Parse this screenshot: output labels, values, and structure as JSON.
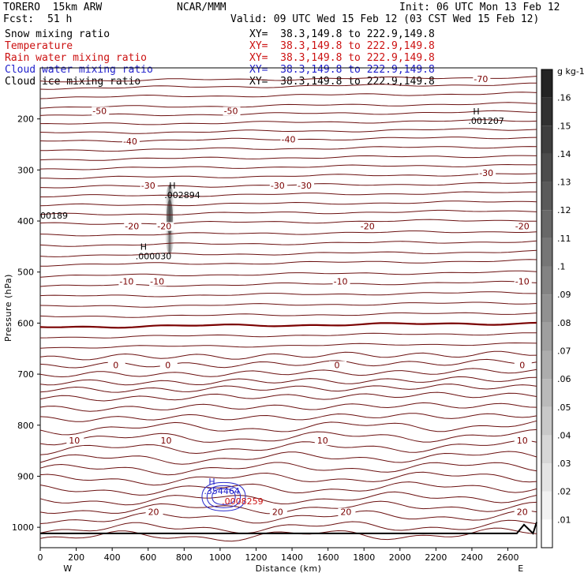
{
  "header": {
    "model": "TORERO  15km ARW",
    "org": "NCAR/MMM",
    "init": "Init: 06 UTC Mon 13 Feb 12",
    "fcst_label": "Fcst:",
    "fcst_value": "51 h",
    "valid": "Valid: 09 UTC Wed 15 Feb 12 (03 CST Wed 15 Feb 12)"
  },
  "legend": [
    {
      "name": "Snow mixing ratio",
      "xy": "XY=  38.3,149.8 to 222.9,149.8",
      "color": "#000000"
    },
    {
      "name": "Temperature",
      "xy": "XY=  38.3,149.8 to 222.9,149.8",
      "color": "#cc1111"
    },
    {
      "name": "Rain water mixing ratio",
      "xy": "XY=  38.3,149.8 to 222.9,149.8",
      "color": "#cc1111"
    },
    {
      "name": "Cloud water mixing ratio",
      "xy": "XY=  38.3,149.8 to 222.9,149.8",
      "color": "#2222cc"
    },
    {
      "name": "Cloud ice mixing ratio",
      "xy": "XY=  38.3,149.8 to 222.9,149.8",
      "color": "#000000"
    }
  ],
  "chart_data": {
    "type": "line",
    "xlabel": "Distance (km)",
    "ylabel": "Pressure (hPa)",
    "x_ticks": [
      0,
      200,
      400,
      600,
      800,
      1000,
      1200,
      1400,
      1600,
      1800,
      2000,
      2200,
      2400,
      2600
    ],
    "xlim": [
      0,
      2760
    ],
    "y_ticks": [
      200,
      300,
      400,
      500,
      600,
      700,
      800,
      900,
      1000
    ],
    "ylim": [
      100,
      1040
    ],
    "x_end_labels": {
      "left": "W",
      "right": "E"
    },
    "temperature_contours": [
      {
        "value": -70,
        "labels": [
          {
            "x": 2450,
            "y": 122,
            "text": "-70"
          }
        ]
      },
      {
        "value": -50,
        "labels": [
          {
            "x": 330,
            "y": 184,
            "text": "-50"
          },
          {
            "x": 1060,
            "y": 184,
            "text": "-50"
          }
        ]
      },
      {
        "value": -40,
        "labels": [
          {
            "x": 500,
            "y": 244,
            "text": "-40"
          },
          {
            "x": 1380,
            "y": 240,
            "text": "-40"
          }
        ]
      },
      {
        "value": -30,
        "labels": [
          {
            "x": 600,
            "y": 330,
            "text": "-30"
          },
          {
            "x": 1320,
            "y": 330,
            "text": "-30"
          },
          {
            "x": 1470,
            "y": 330,
            "text": "-30"
          },
          {
            "x": 2480,
            "y": 306,
            "text": "-30"
          }
        ]
      },
      {
        "value": -20,
        "labels": [
          {
            "x": 510,
            "y": 410,
            "text": "-20"
          },
          {
            "x": 690,
            "y": 410,
            "text": "-20"
          },
          {
            "x": 1820,
            "y": 410,
            "text": "-20"
          },
          {
            "x": 2740,
            "y": 410,
            "text": "-20"
          }
        ]
      },
      {
        "value": -10,
        "labels": [
          {
            "x": 480,
            "y": 518,
            "text": "-10"
          },
          {
            "x": 650,
            "y": 518,
            "text": "-10"
          },
          {
            "x": 1670,
            "y": 518,
            "text": "-10"
          },
          {
            "x": 2950,
            "y": 518,
            "text": "-10"
          }
        ]
      },
      {
        "value": 0,
        "labels": [
          {
            "x": 420,
            "y": 682,
            "text": "0"
          },
          {
            "x": 710,
            "y": 682,
            "text": "0"
          },
          {
            "x": 1650,
            "y": 682,
            "text": "0"
          },
          {
            "x": 2930,
            "y": 682,
            "text": "0"
          }
        ]
      },
      {
        "value": 10,
        "labels": [
          {
            "x": 190,
            "y": 830,
            "text": "10"
          },
          {
            "x": 700,
            "y": 830,
            "text": "10"
          },
          {
            "x": 1570,
            "y": 830,
            "text": "10"
          },
          {
            "x": 3020,
            "y": 830,
            "text": "10"
          }
        ]
      },
      {
        "value": 20,
        "labels": [
          {
            "x": 630,
            "y": 970,
            "text": "20"
          },
          {
            "x": 1320,
            "y": 970,
            "text": "20"
          },
          {
            "x": 1700,
            "y": 970,
            "text": "20"
          },
          {
            "x": 3040,
            "y": 970,
            "text": "20"
          }
        ]
      }
    ],
    "extrema": [
      {
        "mark": "H",
        "value": ".001207",
        "x": 2380,
        "y": 210,
        "color": "#000000"
      },
      {
        "mark": "H",
        "value": ".002894",
        "x": 690,
        "y": 355,
        "color": "#000000"
      },
      {
        "mark": "",
        "value": "00189",
        "x": 0,
        "y": 395,
        "color": "#000000"
      },
      {
        "mark": "H",
        "value": ".000030",
        "x": 530,
        "y": 475,
        "color": "#000000"
      },
      {
        "mark": "H",
        "value": ".354464",
        "x": 910,
        "y": 935,
        "color": "#2222cc"
      },
      {
        "mark": "",
        "value": ".0008259",
        "x": 1010,
        "y": 955,
        "color": "#cc1111"
      }
    ],
    "colorbar": {
      "unit": "g kg-1",
      "ticks": [
        ".01",
        ".02",
        ".03",
        ".04",
        ".05",
        ".06",
        ".07",
        ".08",
        ".09",
        ".1",
        ".11",
        ".12",
        ".13",
        ".14",
        ".15",
        ".16"
      ]
    }
  }
}
